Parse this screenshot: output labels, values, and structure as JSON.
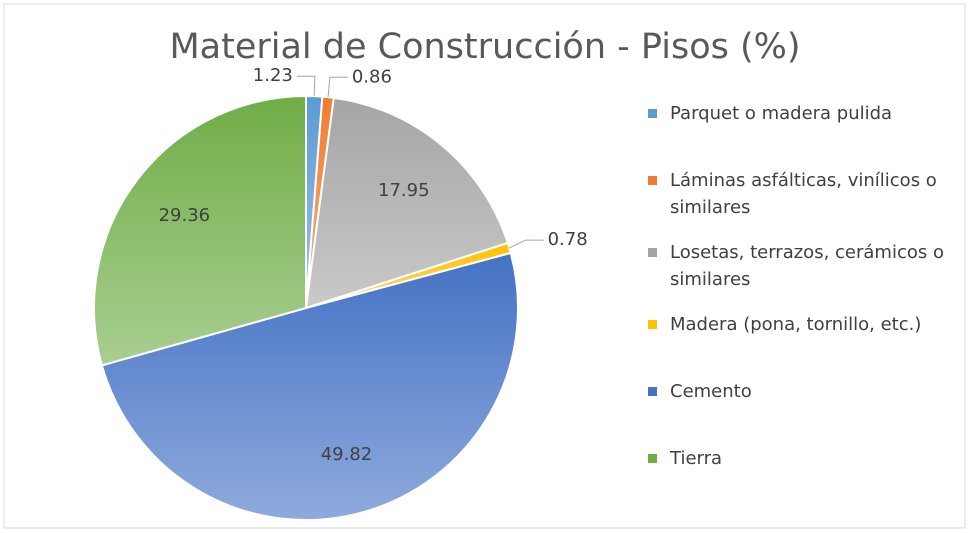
{
  "chart_data": {
    "type": "pie",
    "title": "Material de Construcción - Pisos (%)",
    "categories": [
      "Parquet o madera pulida",
      "Láminas asfálticas, vinílicos o similares",
      "Losetas, terrazos, cerámicos o similares",
      "Madera (pona, tornillo, etc.)",
      "Cemento",
      "Tierra"
    ],
    "values": [
      1.23,
      0.86,
      17.95,
      0.78,
      49.82,
      29.36
    ],
    "colors": [
      "#5b9bd5",
      "#ed7d31",
      "#a5a5a5",
      "#ffc000",
      "#4472c4",
      "#70ad47"
    ],
    "legend": "right"
  }
}
